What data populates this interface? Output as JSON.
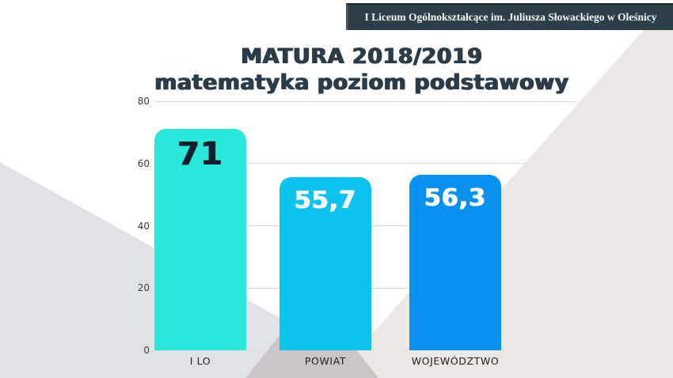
{
  "banner": {
    "text": "I Liceum Ogólnokształcące im. Juliusza Słowackiego w Oleśnicy"
  },
  "title": {
    "line1": "MATURA 2018/2019",
    "line2": "matematyka poziom podstawowy"
  },
  "chart_data": {
    "type": "bar",
    "title": "MATURA 2018/2019 matematyka poziom podstawowy",
    "categories": [
      "I LO",
      "POWIAT",
      "WOJEWÓDZTWO"
    ],
    "values": [
      71,
      55.7,
      56.3
    ],
    "value_labels": [
      "71",
      "55,7",
      "56,3"
    ],
    "bar_colors": [
      "#2ae8da",
      "#0cc3ee",
      "#0990ee"
    ],
    "value_text_colors": [
      "#141f2b",
      "#ffffff",
      "#ffffff"
    ],
    "xlabel": "",
    "ylabel": "",
    "ylim": [
      0,
      80
    ],
    "yticks": [
      0,
      20,
      40,
      60,
      80
    ],
    "grid": true,
    "legend": false
  },
  "colors": {
    "banner_bg": "#2d4049",
    "banner_border": "#465962",
    "title_text": "#2a3b49",
    "bg_beige": "#ece7e3",
    "bg_bluegray": "#dfe3e8",
    "bg_wedge": "#cbc5ca",
    "gridline": "#dcdcdc",
    "tick_text": "#3c3c3c",
    "category_text": "#1e1e1e"
  }
}
